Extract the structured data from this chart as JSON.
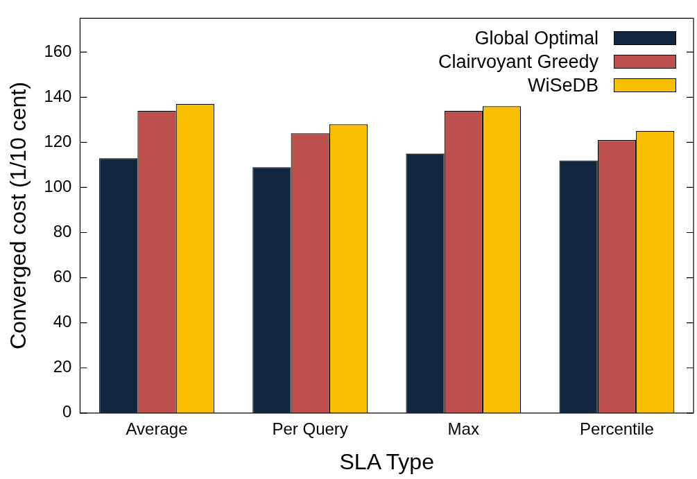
{
  "chart_data": {
    "type": "bar",
    "xlabel": "SLA Type",
    "ylabel": "Converged cost (1/10 cent)",
    "categories": [
      "Average",
      "Per Query",
      "Max",
      "Percentile"
    ],
    "series": [
      {
        "name": "Global Optimal",
        "color": "#12263f",
        "values": [
          113,
          109,
          115,
          112
        ]
      },
      {
        "name": "Clairvoyant Greedy",
        "color": "#bd4f4c",
        "values": [
          134,
          124,
          134,
          121
        ]
      },
      {
        "name": "WiSeDB",
        "color": "#f8bf00",
        "values": [
          137,
          128,
          136,
          125
        ]
      }
    ],
    "ylim": [
      0,
      175
    ],
    "yticks": [
      0,
      20,
      40,
      60,
      80,
      100,
      120,
      140,
      160
    ],
    "grid": false,
    "legend": "top right"
  }
}
